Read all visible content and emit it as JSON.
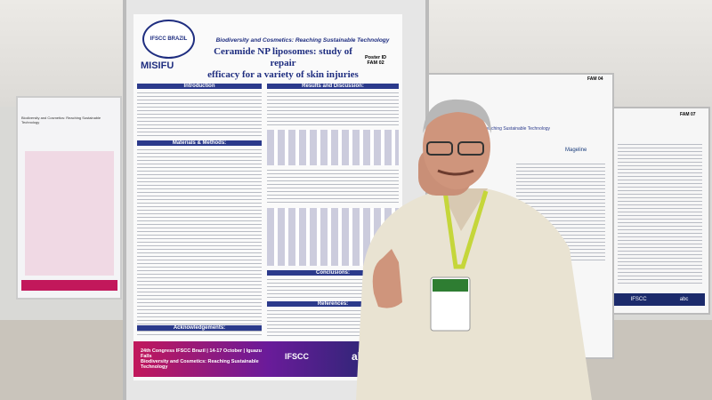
{
  "main_poster": {
    "header": "Biodiversity and Cosmetics: Reaching Sustainable Technology",
    "event_logo": "IFSCC BRAZIL",
    "sponsor_logo": "MISIFU",
    "title_lines": [
      "Ceramide NP liposomes: study of repair",
      "efficacy for a variety of skin injuries"
    ],
    "poster_id_label": "Poster ID",
    "poster_id": "FAM 02",
    "sections": [
      "Introduction",
      "Results and Discussion:",
      "Materials & Methods:",
      "Conclusions:",
      "References:",
      "Acknowledgements:"
    ],
    "footer_event": "24th Congress IFSCC Brazil | 14-17 October | Iguazu Falls",
    "footer_theme": "Biodiversity and Cosmetics: Reaching Sustainable Technology",
    "footer_logos": [
      "IFSCC",
      "abc"
    ]
  },
  "right_poster": {
    "poster_id": "FAM 04",
    "header": "Biodiversity and Cosmetics: Reaching Sustainable Technology",
    "logo": "Mageline"
  },
  "far_right_poster": {
    "poster_id": "FAM 07",
    "footer_logos": [
      "IFSCC",
      "abc"
    ]
  },
  "left_poster": {
    "header": "Biodiversity and Cosmetics: Reaching Sustainable Technology"
  }
}
